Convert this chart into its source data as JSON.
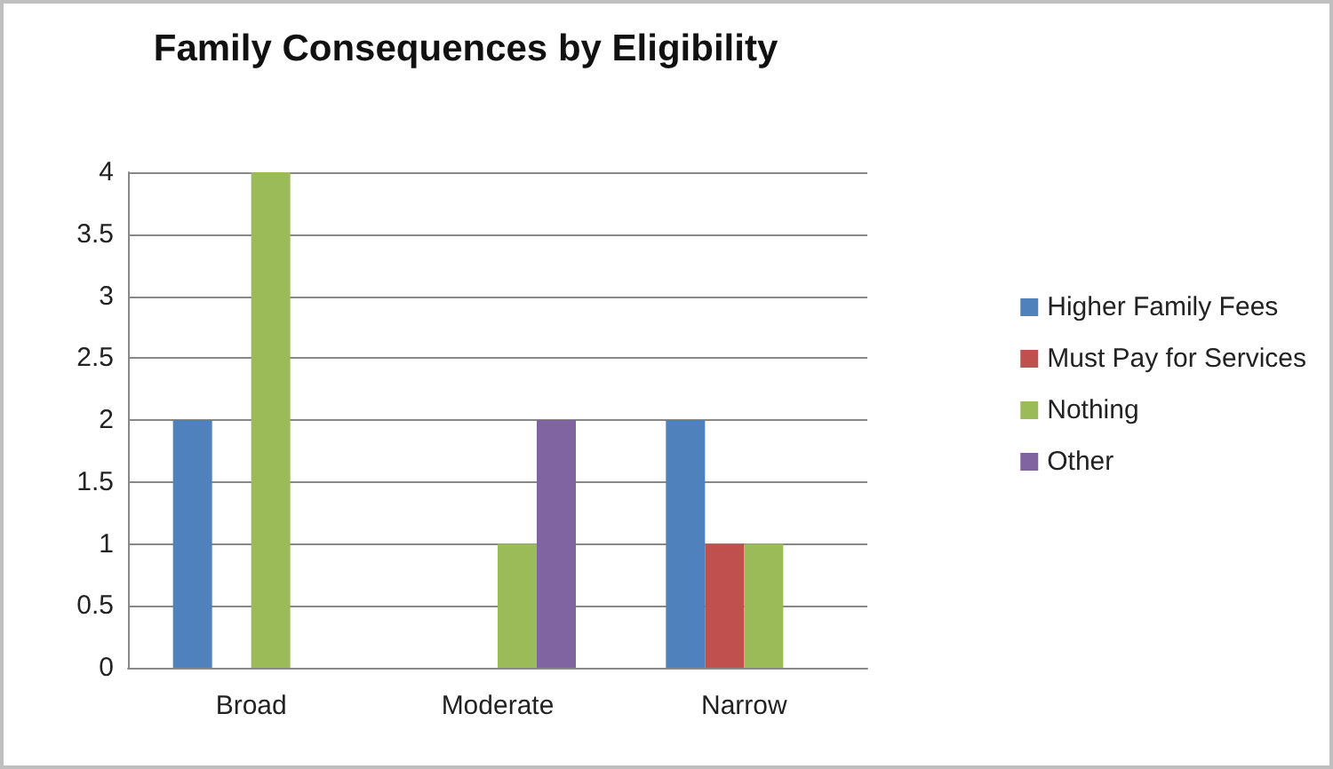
{
  "chart_data": {
    "type": "bar",
    "title": "Family Consequences by Eligibility",
    "categories": [
      "Broad",
      "Moderate",
      "Narrow"
    ],
    "series": [
      {
        "name": "Higher Family Fees",
        "color": "#4f81bd",
        "values": [
          2,
          0,
          2
        ]
      },
      {
        "name": "Must Pay for Services",
        "color": "#c0504d",
        "values": [
          0,
          0,
          1
        ]
      },
      {
        "name": "Nothing",
        "color": "#9bbb59",
        "values": [
          4,
          1,
          1
        ]
      },
      {
        "name": "Other",
        "color": "#8064a2",
        "values": [
          0,
          2,
          0
        ]
      }
    ],
    "ylim": [
      0,
      4
    ],
    "yticks": [
      0,
      0.5,
      1,
      1.5,
      2,
      2.5,
      3,
      3.5,
      4
    ],
    "grid": "y",
    "legend": "right"
  }
}
